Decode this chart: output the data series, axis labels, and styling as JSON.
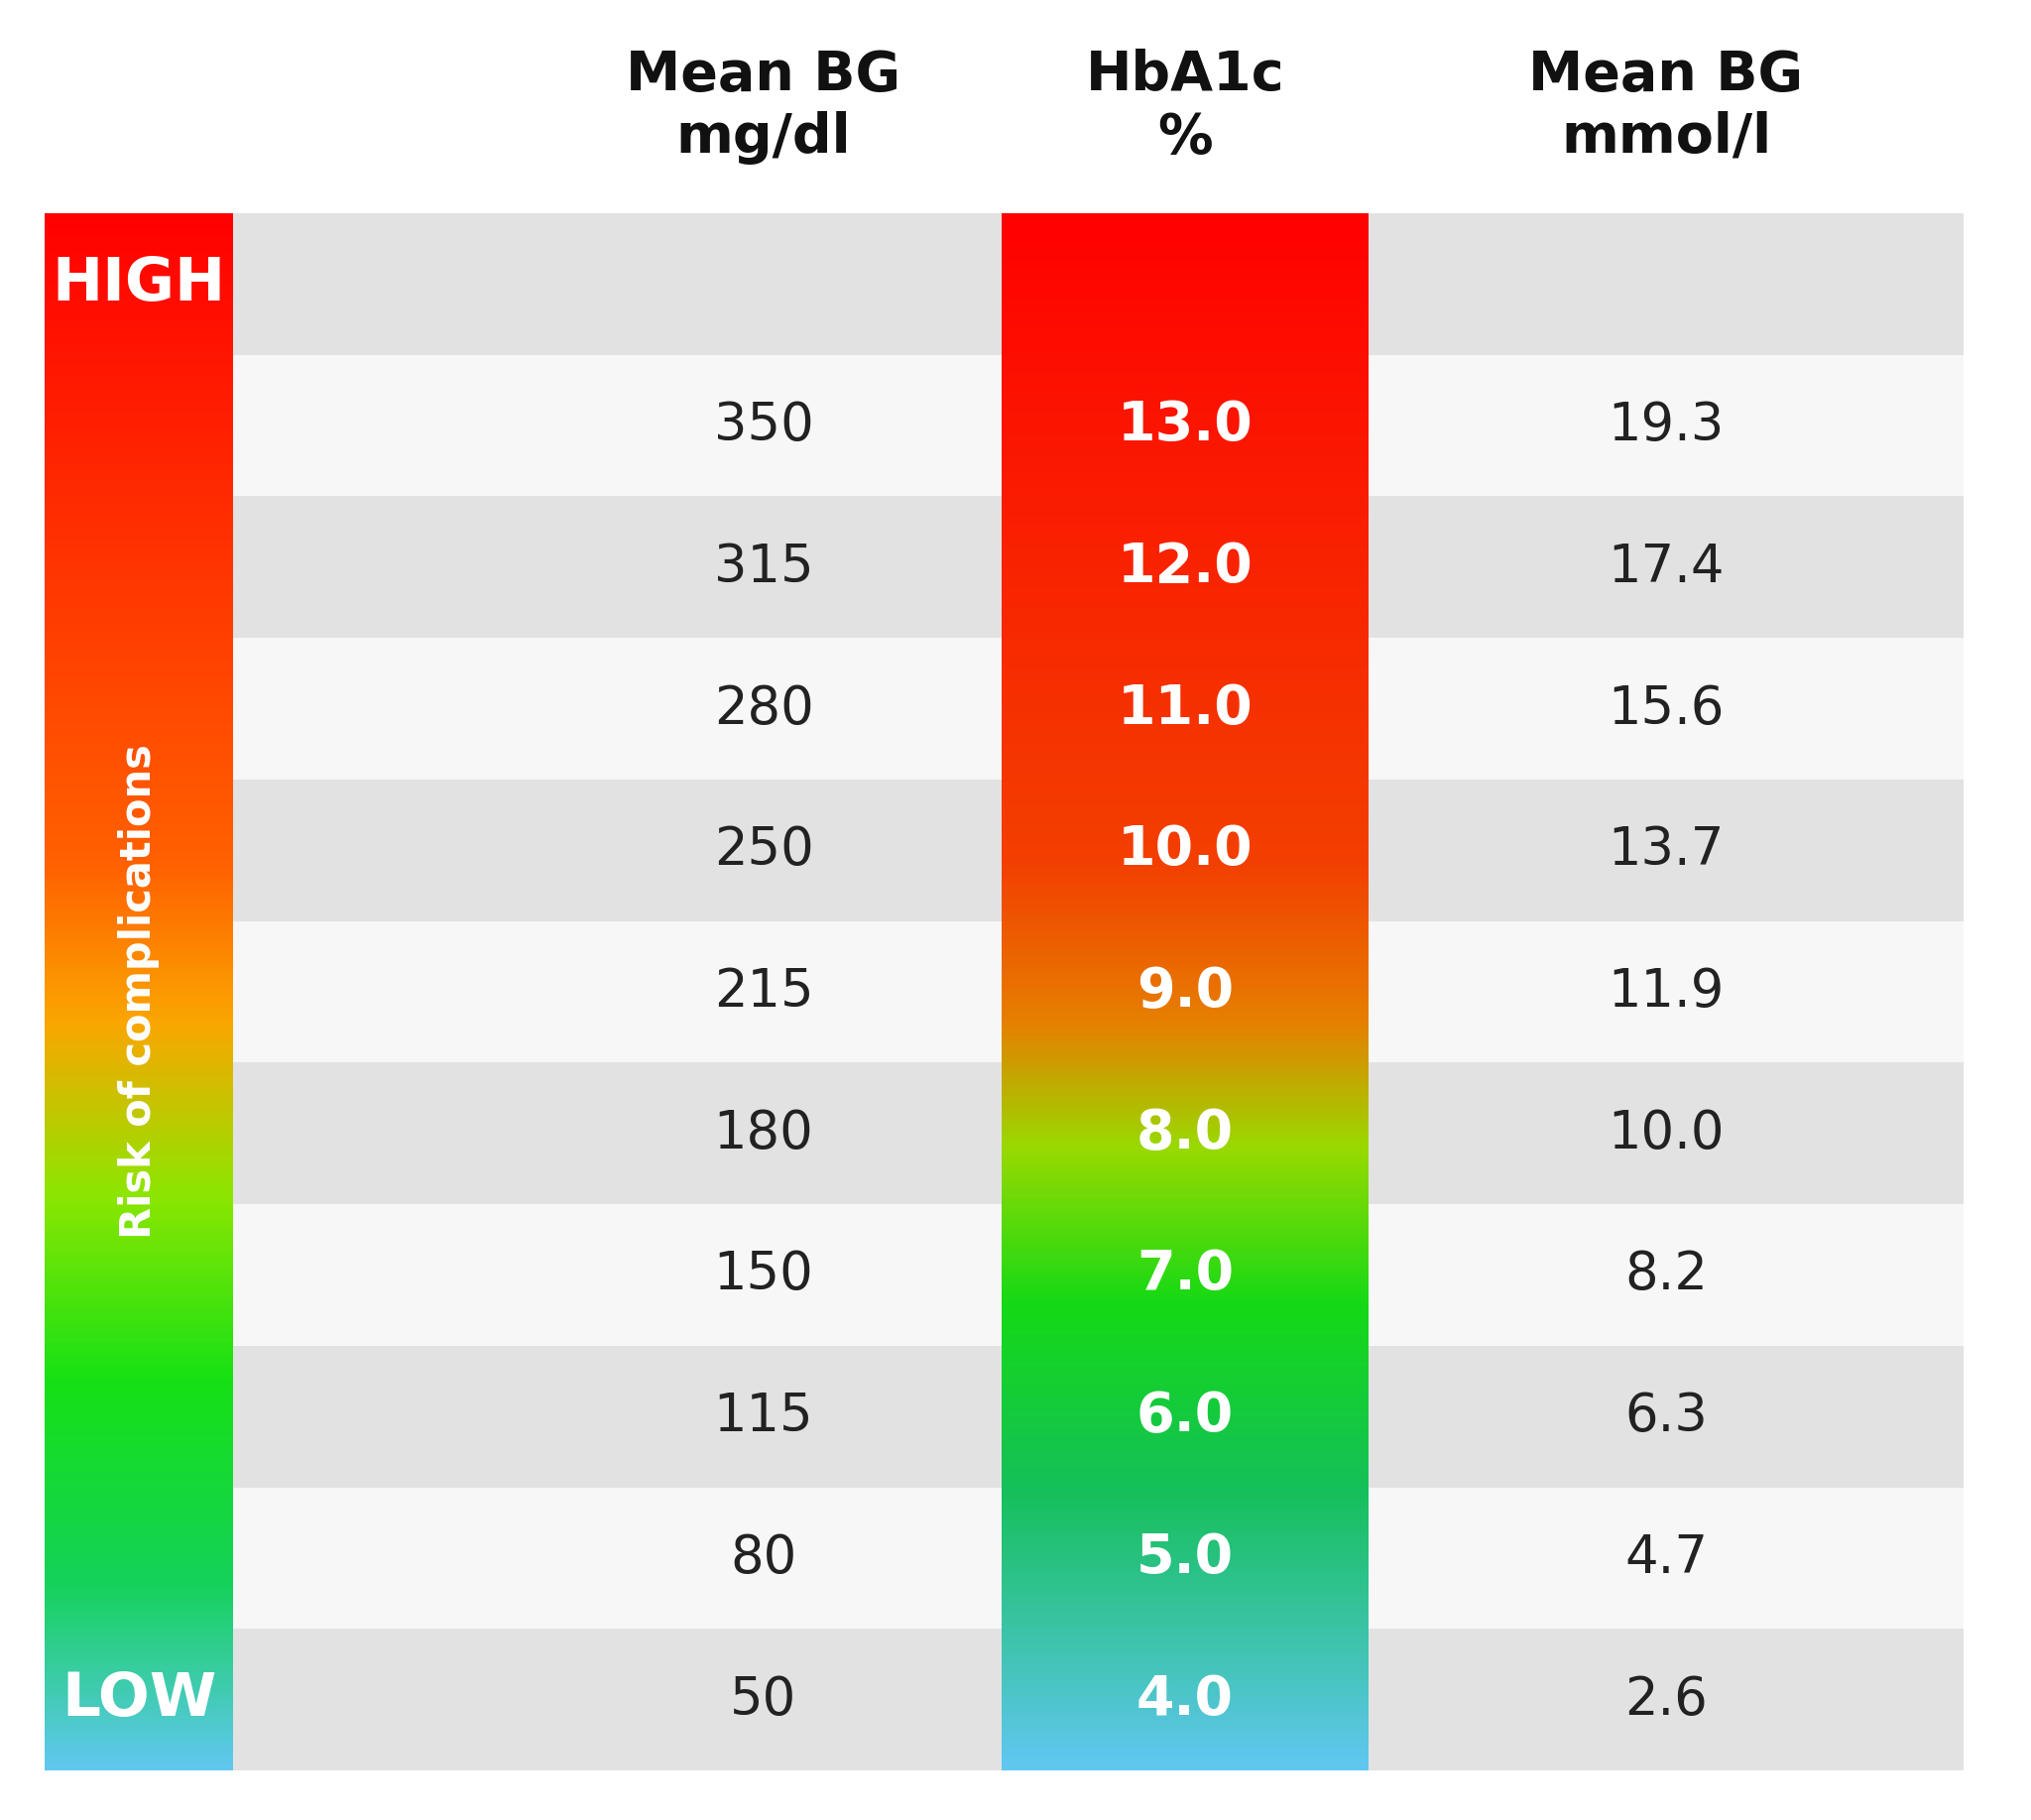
{
  "title_col1": "Mean BG\nmg/dl",
  "title_col2": "HbA1c\n%",
  "title_col3": "Mean BG\nmmol/l",
  "rows": [
    {
      "mean_bg_mg": 350,
      "hba1c": "13.0",
      "mean_bg_mmol": "19.3"
    },
    {
      "mean_bg_mg": 315,
      "hba1c": "12.0",
      "mean_bg_mmol": "17.4"
    },
    {
      "mean_bg_mg": 280,
      "hba1c": "11.0",
      "mean_bg_mmol": "15.6"
    },
    {
      "mean_bg_mg": 250,
      "hba1c": "10.0",
      "mean_bg_mmol": "13.7"
    },
    {
      "mean_bg_mg": 215,
      "hba1c": "9.0",
      "mean_bg_mmol": "11.9"
    },
    {
      "mean_bg_mg": 180,
      "hba1c": "8.0",
      "mean_bg_mmol": "10.0"
    },
    {
      "mean_bg_mg": 150,
      "hba1c": "7.0",
      "mean_bg_mmol": "8.2"
    },
    {
      "mean_bg_mg": 115,
      "hba1c": "6.0",
      "mean_bg_mmol": "6.3"
    },
    {
      "mean_bg_mg": 80,
      "hba1c": "5.0",
      "mean_bg_mmol": "4.7"
    },
    {
      "mean_bg_mg": 50,
      "hba1c": "4.0",
      "mean_bg_mmol": "2.6"
    }
  ],
  "label_high": "HIGH",
  "label_low": "LOW",
  "label_risk": "Risk of complications",
  "row_gray": "#e2e2e2",
  "row_white": "#f7f7f7",
  "background_color": "#ffffff",
  "sidebar_gradient_stops": [
    [
      0.0,
      [
        1.0,
        0.0,
        0.0
      ]
    ],
    [
      0.42,
      [
        1.0,
        0.38,
        0.0
      ]
    ],
    [
      0.52,
      [
        0.98,
        0.65,
        0.0
      ]
    ],
    [
      0.63,
      [
        0.55,
        0.9,
        0.0
      ]
    ],
    [
      0.75,
      [
        0.08,
        0.88,
        0.08
      ]
    ],
    [
      0.88,
      [
        0.08,
        0.82,
        0.35
      ]
    ],
    [
      1.0,
      [
        0.38,
        0.78,
        0.95
      ]
    ]
  ],
  "hba1c_gradient_stops": [
    [
      0.0,
      [
        1.0,
        0.0,
        0.0
      ]
    ],
    [
      0.42,
      [
        0.95,
        0.25,
        0.0
      ]
    ],
    [
      0.52,
      [
        0.9,
        0.5,
        0.0
      ]
    ],
    [
      0.6,
      [
        0.6,
        0.85,
        0.0
      ]
    ],
    [
      0.7,
      [
        0.08,
        0.85,
        0.08
      ]
    ],
    [
      0.82,
      [
        0.08,
        0.75,
        0.35
      ]
    ],
    [
      1.0,
      [
        0.38,
        0.78,
        0.95
      ]
    ]
  ]
}
